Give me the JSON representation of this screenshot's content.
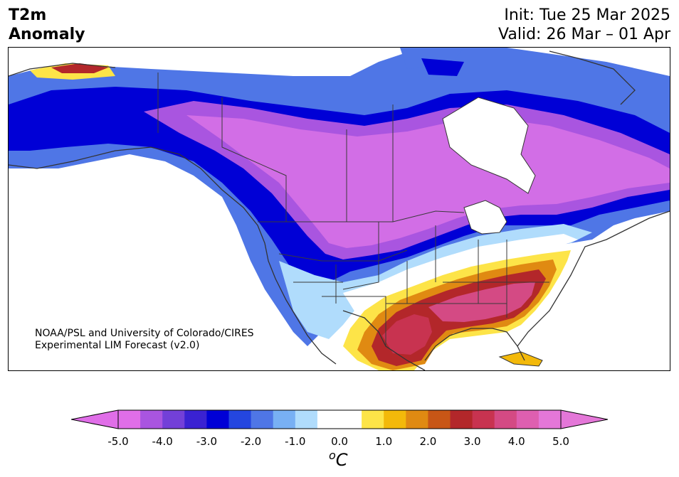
{
  "title": {
    "left_line1": "T2m",
    "left_line2": "Anomaly",
    "right_line1": "Init: Tue 25 Mar 2025",
    "right_line2": "Valid: 26 Mar – 01 Apr"
  },
  "credit": {
    "line1": "NOAA/PSL and University of Colorado/CIRES",
    "line2": "Experimental LIM Forecast (v2.0)"
  },
  "colorbar": {
    "units_symbol": "o",
    "units_letter": "C",
    "tick_labels": [
      "-5.0",
      "-4.0",
      "-3.0",
      "-2.0",
      "-1.0",
      "0.0",
      "1.0",
      "2.0",
      "3.0",
      "4.0",
      "5.0"
    ],
    "min": -5.0,
    "max": 5.0,
    "step": 0.5,
    "extend": "both",
    "colors": [
      "#e06ee8",
      "#a955e0",
      "#7340d8",
      "#3a22d2",
      "#0000d6",
      "#2446e0",
      "#4f76e6",
      "#78b0f4",
      "#b0dcfc",
      "#ffffff",
      "#ffffff",
      "#fde448",
      "#f3b90a",
      "#e08a12",
      "#c85616",
      "#b3272a",
      "#c83350",
      "#d44a84",
      "#de5fb0",
      "#e477d8"
    ]
  },
  "map": {
    "region": "North America",
    "colors": {
      "strong_cold": "#d26ee6",
      "cold": "#a955e0",
      "deep_blue": "#0000d6",
      "blue": "#4f76e6",
      "light_blue": "#b0dcfc",
      "yellow": "#fde448",
      "orange": "#e08a12",
      "red": "#b3272a",
      "pink": "#d44a84"
    }
  }
}
